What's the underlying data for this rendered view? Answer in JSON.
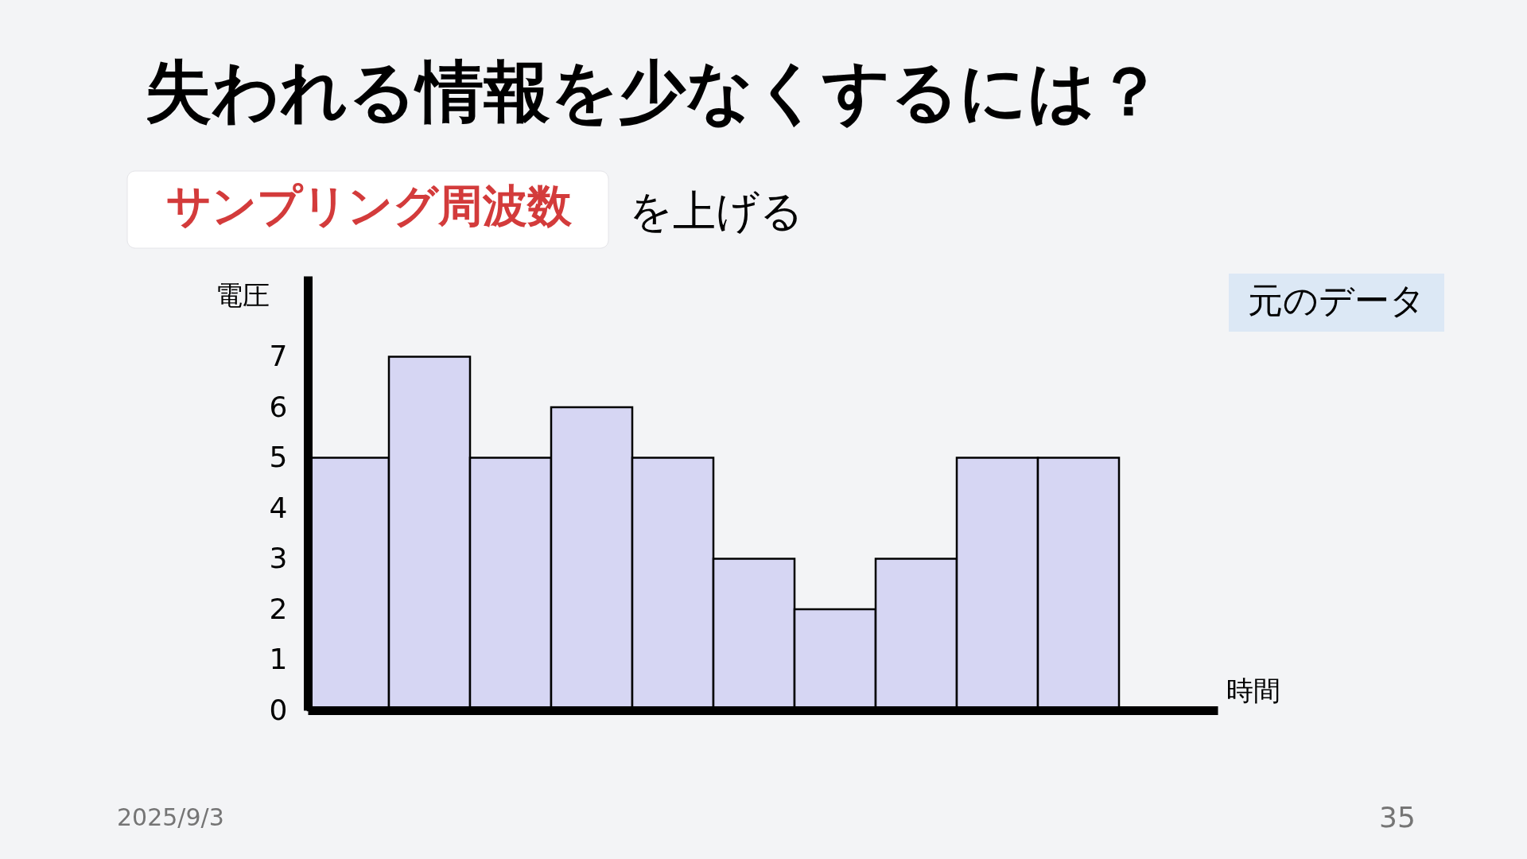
{
  "chart_data": {
    "type": "bar",
    "title": "失われる情報を少なくするには？",
    "subtitle": "サンプリング周波数",
    "categories": [
      null,
      null,
      null,
      null,
      null,
      null,
      null,
      null,
      null,
      null
    ],
    "values": [
      5,
      7,
      5,
      6,
      5,
      3,
      2,
      3,
      5,
      5
    ],
    "color": "#d6d6f3",
    "ylabel": "電圧",
    "xlabel": "時間",
    "ylim": [
      0,
      8.6
    ],
    "yticks": [
      0,
      1,
      2,
      3,
      4,
      5,
      6,
      7
    ],
    "annotations": [
      "を上げる",
      "元のデータ",
      "2025/9/3",
      "35"
    ]
  }
}
